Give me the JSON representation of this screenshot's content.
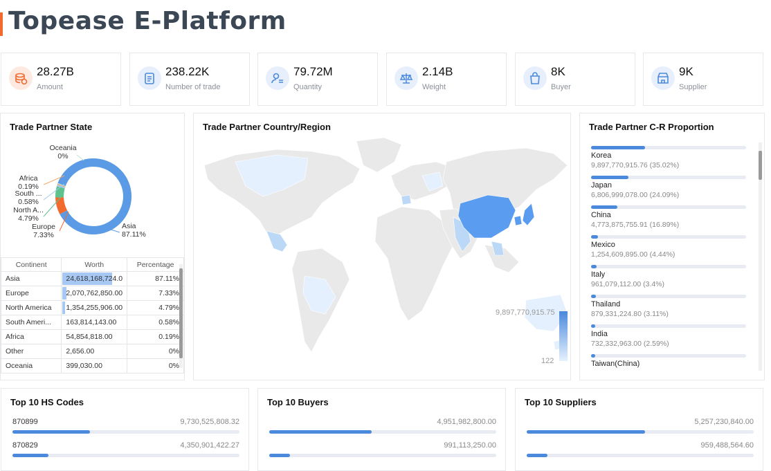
{
  "app": {
    "title": "Topease E-Platform"
  },
  "kpis": [
    {
      "value": "28.27B",
      "label": "Amount",
      "icon": "coins-icon",
      "color": "#f26a2e"
    },
    {
      "value": "238.22K",
      "label": "Number of trade",
      "icon": "clipboard-icon",
      "color": "#4a89dc"
    },
    {
      "value": "79.72M",
      "label": "Quantity",
      "icon": "person-list-icon",
      "color": "#4a89dc"
    },
    {
      "value": "2.14B",
      "label": "Weight",
      "icon": "scale-icon",
      "color": "#4a89dc"
    },
    {
      "value": "8K",
      "label": "Buyer",
      "icon": "shopping-bag-icon",
      "color": "#4a89dc"
    },
    {
      "value": "9K",
      "label": "Supplier",
      "icon": "store-icon",
      "color": "#4a89dc"
    }
  ],
  "state_panel": {
    "title": "Trade Partner State",
    "donut_labels": [
      {
        "name": "Oceania",
        "pct": "0%"
      },
      {
        "name": "Africa",
        "pct": "0.19%"
      },
      {
        "name": "South ...",
        "pct": "0.58%"
      },
      {
        "name": "North A...",
        "pct": "4.79%"
      },
      {
        "name": "Europe",
        "pct": "7.33%"
      },
      {
        "name": "Asia",
        "pct": "87.11%"
      }
    ],
    "donut_colors": {
      "Asia": "#5b9be6",
      "Europe": "#f26a2e",
      "North America": "#5ec28f",
      "South America": "#9ecbf3",
      "Africa": "#f6a96b",
      "Oceania": "#bfe3cf"
    },
    "table": {
      "headers": [
        "Continent",
        "Worth",
        "Percentage"
      ],
      "rows": [
        {
          "continent": "Asia",
          "worth": "24,618,168,724.0",
          "pct": "87.11%",
          "share": 0.8711
        },
        {
          "continent": "Europe",
          "worth": "2,070,762,850.00",
          "pct": "7.33%",
          "share": 0.0733
        },
        {
          "continent": "North America",
          "worth": "1,354,255,906.00",
          "pct": "4.79%",
          "share": 0.0479
        },
        {
          "continent": "South Ameri...",
          "worth": "163,814,143.00",
          "pct": "0.58%",
          "share": 0.0058
        },
        {
          "continent": "Africa",
          "worth": "54,854,818.00",
          "pct": "0.19%",
          "share": 0.0019
        },
        {
          "continent": "Other",
          "worth": "2,656.00",
          "pct": "0%",
          "share": 0
        },
        {
          "continent": "Oceania",
          "worth": "399,030.00",
          "pct": "0%",
          "share": 0
        }
      ]
    }
  },
  "map_panel": {
    "title": "Trade Partner Country/Region",
    "legend_max": "9,897,770,915.75",
    "legend_min": "122"
  },
  "proportion_panel": {
    "title": "Trade Partner C-R Proportion",
    "items": [
      {
        "name": "Korea",
        "value": "9,897,770,915.76 (35.02%)",
        "share": 0.3502
      },
      {
        "name": "Japan",
        "value": "6,806,999,078.00 (24.09%)",
        "share": 0.2409
      },
      {
        "name": "China",
        "value": "4,773,875,755.91 (16.89%)",
        "share": 0.1689
      },
      {
        "name": "Mexico",
        "value": "1,254,609,895.00 (4.44%)",
        "share": 0.0444
      },
      {
        "name": "Italy",
        "value": "961,079,112.00 (3.4%)",
        "share": 0.034
      },
      {
        "name": "Thailand",
        "value": "879,331,224.80 (3.11%)",
        "share": 0.0311
      },
      {
        "name": "India",
        "value": "732,332,963.00 (2.59%)",
        "share": 0.0259
      },
      {
        "name": "Taiwan(China)",
        "value": "",
        "share": 0.025
      }
    ]
  },
  "top10": [
    {
      "title": "Top 10 HS Codes",
      "rows": [
        {
          "label": "870899",
          "value": "9,730,525,808.32",
          "share": 0.34
        },
        {
          "label": "870829",
          "value": "4,350,901,422.27",
          "share": 0.16
        }
      ]
    },
    {
      "title": "Top 10 Buyers",
      "rows": [
        {
          "label": "",
          "value": "4,951,982,800.00",
          "share": 0.45
        },
        {
          "label": "",
          "value": "991,113,250.00",
          "share": 0.09
        }
      ]
    },
    {
      "title": "Top 10 Suppliers",
      "rows": [
        {
          "label": "",
          "value": "5,257,230,840.00",
          "share": 0.52
        },
        {
          "label": "",
          "value": "959,488,564.60",
          "share": 0.09
        }
      ]
    }
  ]
}
